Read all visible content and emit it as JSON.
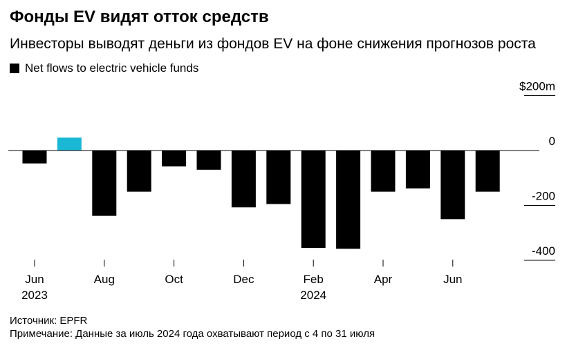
{
  "title": "Фонды EV видят отток средств",
  "subtitle": "Инвесторы выводят деньги из фондов EV на фоне снижения прогнозов роста",
  "legend": {
    "label": "Net flows to electric vehicle funds",
    "color": "#000000"
  },
  "colors": {
    "negative": "#000000",
    "positive": "#1bb8d6",
    "zero_line": "#000000",
    "tick_rule": "#000000"
  },
  "chart_data": {
    "type": "bar",
    "title": "Фонды EV видят отток средств",
    "subtitle": "Инвесторы выводят деньги из фондов EV на фоне снижения прогнозов роста",
    "series": [
      {
        "name": "Net flows to electric vehicle funds",
        "values": [
          -47,
          47,
          -238,
          -150,
          -58,
          -70,
          -207,
          -195,
          -355,
          -358,
          -150,
          -138,
          -250,
          -150
        ]
      }
    ],
    "categories": [
      "Jun 2023",
      "Jul 2023",
      "Aug 2023",
      "Sep 2023",
      "Oct 2023",
      "Nov 2023",
      "Dec 2023",
      "Jan 2024",
      "Feb 2024",
      "Mar 2024",
      "Apr 2024",
      "May 2024",
      "Jun 2024",
      "Jul 2024"
    ],
    "highlight_index": 1,
    "x_ticks": [
      {
        "index": 0,
        "label": "Jun",
        "year": "2023"
      },
      {
        "index": 2,
        "label": "Aug",
        "year": ""
      },
      {
        "index": 4,
        "label": "Oct",
        "year": ""
      },
      {
        "index": 6,
        "label": "Dec",
        "year": ""
      },
      {
        "index": 8,
        "label": "Feb",
        "year": "2024"
      },
      {
        "index": 10,
        "label": "Apr",
        "year": ""
      },
      {
        "index": 12,
        "label": "Jun",
        "year": ""
      }
    ],
    "y_ticks": [
      {
        "value": 200,
        "label": "$200m"
      },
      {
        "value": 0,
        "label": "0"
      },
      {
        "value": -200,
        "label": "-200"
      },
      {
        "value": -400,
        "label": "-400"
      }
    ],
    "ylim": [
      -400,
      200
    ],
    "ylabel": "",
    "xlabel": "",
    "unit": "$m",
    "y_axis_position": "right"
  },
  "footer": {
    "source": "Источник: EPFR",
    "note": "Примечание: Данные за июль 2024 года охватывают период с 4 по 31 июля"
  }
}
